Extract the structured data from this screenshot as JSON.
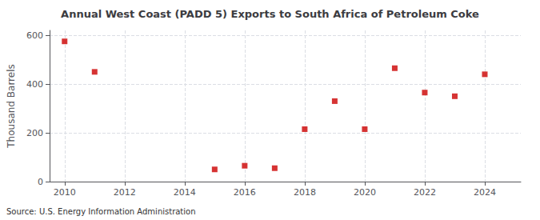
{
  "chart_data": {
    "type": "scatter",
    "title": "Annual West Coast (PADD 5) Exports to South Africa of Petroleum Coke",
    "ylabel": "Thousand Barrels",
    "source": "Source: U.S. Energy Information Administration",
    "x": [
      2010,
      2011,
      2015,
      2016,
      2017,
      2018,
      2019,
      2020,
      2021,
      2022,
      2023,
      2024
    ],
    "values": [
      575,
      450,
      50,
      65,
      55,
      215,
      330,
      215,
      465,
      365,
      350,
      440
    ],
    "color": "#cc0000",
    "marker": "square",
    "xlim": [
      2009.5,
      2025.2
    ],
    "xticks": [
      2010,
      2012,
      2014,
      2016,
      2018,
      2020,
      2022,
      2024
    ],
    "ylim": [
      0,
      620
    ],
    "yticks": [
      0,
      200,
      400,
      600
    ],
    "grid": true
  }
}
